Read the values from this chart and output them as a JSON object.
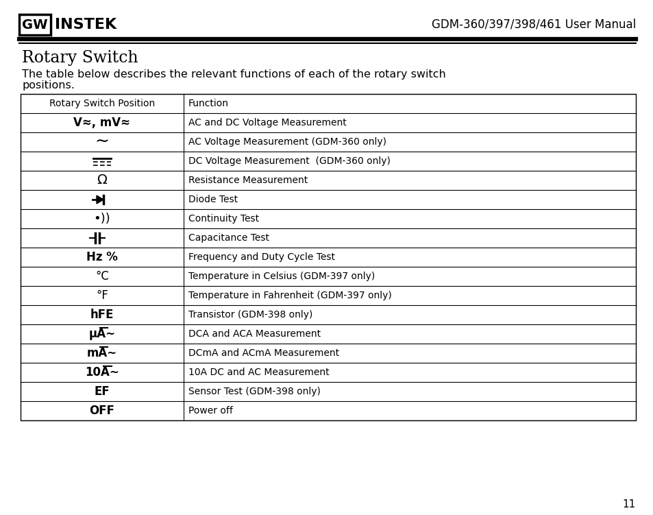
{
  "page_title": "GDM-360/397/398/461 User Manual",
  "logo_gw": "GW",
  "logo_instek": "INSTEK",
  "section_title": "Rotary Switch",
  "desc_line1": "The table below describes the relevant functions of each of the rotary switch",
  "desc_line2": "positions.",
  "col1_header": "Rotary Switch Position",
  "col2_header": "Function",
  "rows": [
    [
      "V≈, mV≈",
      "AC and DC Voltage Measurement",
      "bold"
    ],
    [
      "∼",
      "AC Voltage Measurement (GDM-360 only)",
      "normal"
    ],
    [
      "dc_symbol",
      "DC Voltage Measurement  (GDM-360 only)",
      "normal"
    ],
    [
      "Ω",
      "Resistance Measurement",
      "normal"
    ],
    [
      "diode",
      "Diode Test",
      "normal"
    ],
    [
      "cont",
      "Continuity Test",
      "normal"
    ],
    [
      "cap",
      "Capacitance Test",
      "normal"
    ],
    [
      "Hz %",
      "Frequency and Duty Cycle Test",
      "bold"
    ],
    [
      "°C",
      "Temperature in Celsius (GDM-397 only)",
      "normal"
    ],
    [
      "°F",
      "Temperature in Fahrenheit (GDM-397 only)",
      "normal"
    ],
    [
      "hFE",
      "Transistor (GDM-398 only)",
      "bold"
    ],
    [
      "μA∼",
      "DCA and ACA Measurement",
      "bold_line"
    ],
    [
      "mA∼",
      "DCmA and ACmA Measurement",
      "bold_line"
    ],
    [
      "10A∼",
      "10A DC and AC Measurement",
      "bold_line"
    ],
    [
      "EF",
      "Sensor Test (GDM-398 only)",
      "bold"
    ],
    [
      "OFF",
      "Power off",
      "bold"
    ]
  ],
  "page_number": "11",
  "bg_color": "#ffffff",
  "text_color": "#000000"
}
